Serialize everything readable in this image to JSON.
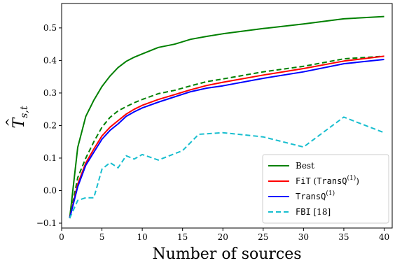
{
  "chart_data": {
    "type": "line",
    "xlabel": "Number of sources",
    "ylabel_base": "T",
    "ylabel_sub": "s,t",
    "xlim": [
      0,
      41
    ],
    "ylim": [
      -0.115,
      0.575
    ],
    "xticks": [
      0,
      5,
      10,
      15,
      20,
      25,
      30,
      35,
      40
    ],
    "yticks": [
      -0.1,
      0.0,
      0.1,
      0.2,
      0.3,
      0.4,
      0.5
    ],
    "xtick_labels": [
      "0",
      "5",
      "10",
      "15",
      "20",
      "25",
      "30",
      "35",
      "40"
    ],
    "ytick_labels": [
      "−0.1",
      "0.0",
      "0.1",
      "0.2",
      "0.3",
      "0.4",
      "0.5"
    ],
    "legend_position": "lower-right",
    "series": [
      {
        "name": "Best",
        "color": "#008000",
        "dash": "solid",
        "x": [
          1,
          2,
          3,
          4,
          5,
          6,
          7,
          8,
          9,
          10,
          12,
          14,
          16,
          18,
          20,
          25,
          30,
          35,
          40
        ],
        "values": [
          -0.085,
          0.133,
          0.228,
          0.278,
          0.32,
          0.352,
          0.378,
          0.397,
          0.41,
          0.42,
          0.44,
          0.45,
          0.465,
          0.474,
          0.482,
          0.498,
          0.512,
          0.528,
          0.535
        ]
      },
      {
        "name": "",
        "color": "#008000",
        "dash": "dashed",
        "x": [
          1,
          2,
          3,
          4,
          5,
          6,
          7,
          8,
          9,
          10,
          12,
          14,
          16,
          18,
          20,
          25,
          30,
          35,
          40
        ],
        "values": [
          -0.085,
          0.04,
          0.1,
          0.15,
          0.195,
          0.225,
          0.245,
          0.258,
          0.27,
          0.28,
          0.298,
          0.308,
          0.322,
          0.335,
          0.343,
          0.365,
          0.382,
          0.405,
          0.413
        ]
      },
      {
        "name": "FiT (TransQ(1))",
        "color": "#ff0000",
        "dash": "solid",
        "x": [
          1,
          2,
          3,
          4,
          5,
          6,
          7,
          8,
          9,
          10,
          12,
          14,
          16,
          18,
          20,
          25,
          30,
          35,
          40
        ],
        "values": [
          -0.085,
          0.02,
          0.085,
          0.128,
          0.168,
          0.195,
          0.215,
          0.235,
          0.25,
          0.262,
          0.28,
          0.295,
          0.31,
          0.323,
          0.333,
          0.355,
          0.375,
          0.398,
          0.413
        ]
      },
      {
        "name": "TransQ(1)",
        "color": "#0000ff",
        "dash": "solid",
        "x": [
          1,
          2,
          3,
          4,
          5,
          6,
          7,
          8,
          9,
          10,
          12,
          14,
          16,
          18,
          20,
          25,
          30,
          35,
          40
        ],
        "values": [
          -0.085,
          0.012,
          0.078,
          0.118,
          0.158,
          0.185,
          0.205,
          0.228,
          0.242,
          0.254,
          0.272,
          0.288,
          0.304,
          0.315,
          0.322,
          0.345,
          0.365,
          0.39,
          0.403
        ]
      },
      {
        "name": "FBI [18]",
        "color": "#17becf",
        "dash": "dashed",
        "x": [
          1,
          2,
          3,
          4,
          5,
          6,
          7,
          8,
          9,
          10,
          12,
          15,
          17,
          20,
          25,
          30,
          35,
          40
        ],
        "values": [
          -0.085,
          -0.03,
          -0.022,
          -0.022,
          0.066,
          0.086,
          0.07,
          0.107,
          0.097,
          0.111,
          0.094,
          0.123,
          0.173,
          0.178,
          0.165,
          0.134,
          0.226,
          0.178
        ]
      }
    ],
    "legend": [
      {
        "series": 0,
        "label": "Best",
        "mono": false
      },
      {
        "series": 2,
        "label_mono": "FiT",
        "label_mid": " (",
        "label_mono2": "TransQ",
        "label_sup": "(1)",
        "label_end": ")",
        "mono": true
      },
      {
        "series": 3,
        "label_mono": "TransQ",
        "label_sup": "(1)",
        "mono": true
      },
      {
        "series": 4,
        "label_mono": "FBI",
        "label_end": " [18]",
        "mono": true
      }
    ]
  }
}
